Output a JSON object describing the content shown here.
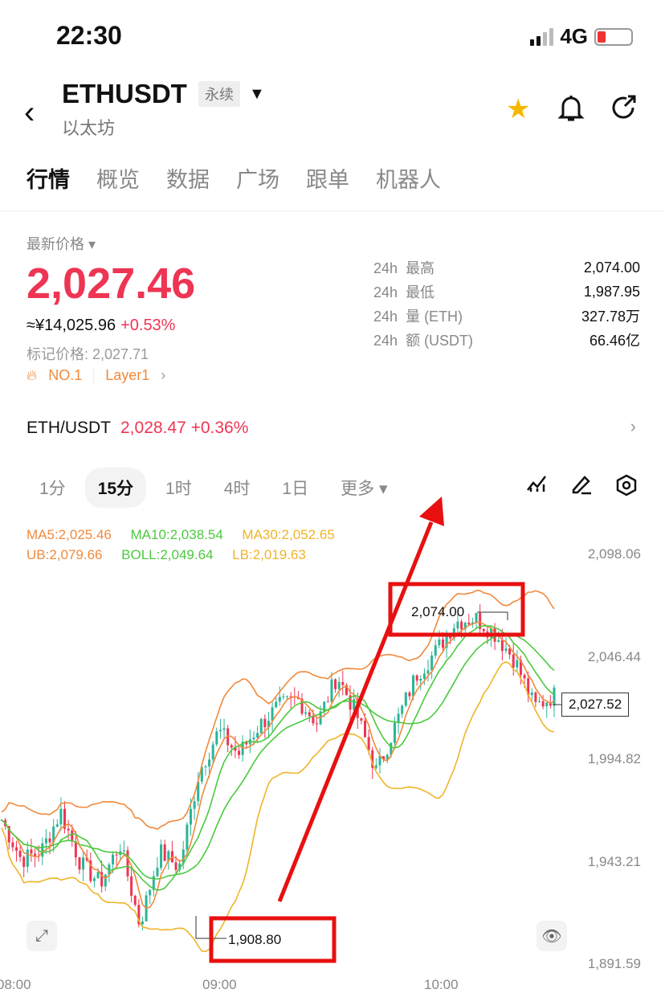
{
  "status_bar": {
    "time": "22:30",
    "network": "4G",
    "battery_level": 0.2
  },
  "header": {
    "symbol": "ETHUSDT",
    "contract_tag": "永续",
    "name": "以太坊",
    "icons": [
      "back-icon",
      "star-icon",
      "bell-icon",
      "share-icon"
    ],
    "star_color": "#f5b800"
  },
  "tabs": [
    {
      "label": "行情",
      "active": true
    },
    {
      "label": "概览"
    },
    {
      "label": "数据"
    },
    {
      "label": "广场"
    },
    {
      "label": "跟单"
    },
    {
      "label": "机器人"
    }
  ],
  "price": {
    "label": "最新价格",
    "last": "2,027.46",
    "cny": "≈¥14,025.96",
    "change": "+0.53%",
    "mark": "标记价格: 2,027.71",
    "rank": "NO.1",
    "sector": "Layer1",
    "color": "#ee3553"
  },
  "stats": [
    {
      "period": "24h",
      "label": "最高",
      "value": "2,074.00"
    },
    {
      "period": "24h",
      "label": "最低",
      "value": "1,987.95"
    },
    {
      "period": "24h",
      "label": "量 (ETH)",
      "value": "327.78万"
    },
    {
      "period": "24h",
      "label": "额 (USDT)",
      "value": "66.46亿"
    }
  ],
  "spot": {
    "pair": "ETH/USDT",
    "price": "2,028.47",
    "change": "+0.36%"
  },
  "intervals": [
    {
      "label": "1分"
    },
    {
      "label": "15分",
      "active": true
    },
    {
      "label": "1时"
    },
    {
      "label": "4时"
    },
    {
      "label": "1日"
    },
    {
      "label": "更多 ▾"
    }
  ],
  "chart_tools": [
    "indicator-icon",
    "draw-icon",
    "settings-icon"
  ],
  "chart_data": {
    "type": "candlestick",
    "indicators": {
      "ma": [
        {
          "label": "MA5:2,025.46",
          "color": "#f08a3c"
        },
        {
          "label": "MA10:2,038.54",
          "color": "#4cc93f"
        },
        {
          "label": "MA30:2,052.65",
          "color": "#f0b429"
        }
      ],
      "boll": [
        {
          "label": "UB:2,079.66",
          "color": "#f08a3c"
        },
        {
          "label": "BOLL:2,049.64",
          "color": "#4cc93f"
        },
        {
          "label": "LB:2,019.63",
          "color": "#f0b429"
        }
      ]
    },
    "y_ticks": [
      "2,098.06",
      "2,046.44",
      "1,994.82",
      "1,943.21",
      "1,891.59"
    ],
    "ylim": [
      1891.59,
      2098.06
    ],
    "x_ticks": [
      "08:00",
      "09:00",
      "10:00"
    ],
    "approx_close_path": [
      1964,
      1944,
      1948,
      1968,
      1942,
      1932,
      1952,
      1911,
      1948,
      1940,
      1988,
      2009,
      1997,
      2011,
      2021,
      2025,
      2013,
      2037,
      2017,
      1988,
      2013,
      2037,
      2049,
      2064,
      2066,
      2058,
      2045,
      2021,
      2027
    ],
    "high_marker": "2,074.00",
    "low_marker": "1,908.80",
    "current_price": "2,027.52",
    "up_color": "#2bb597",
    "down_color": "#ee3553"
  }
}
